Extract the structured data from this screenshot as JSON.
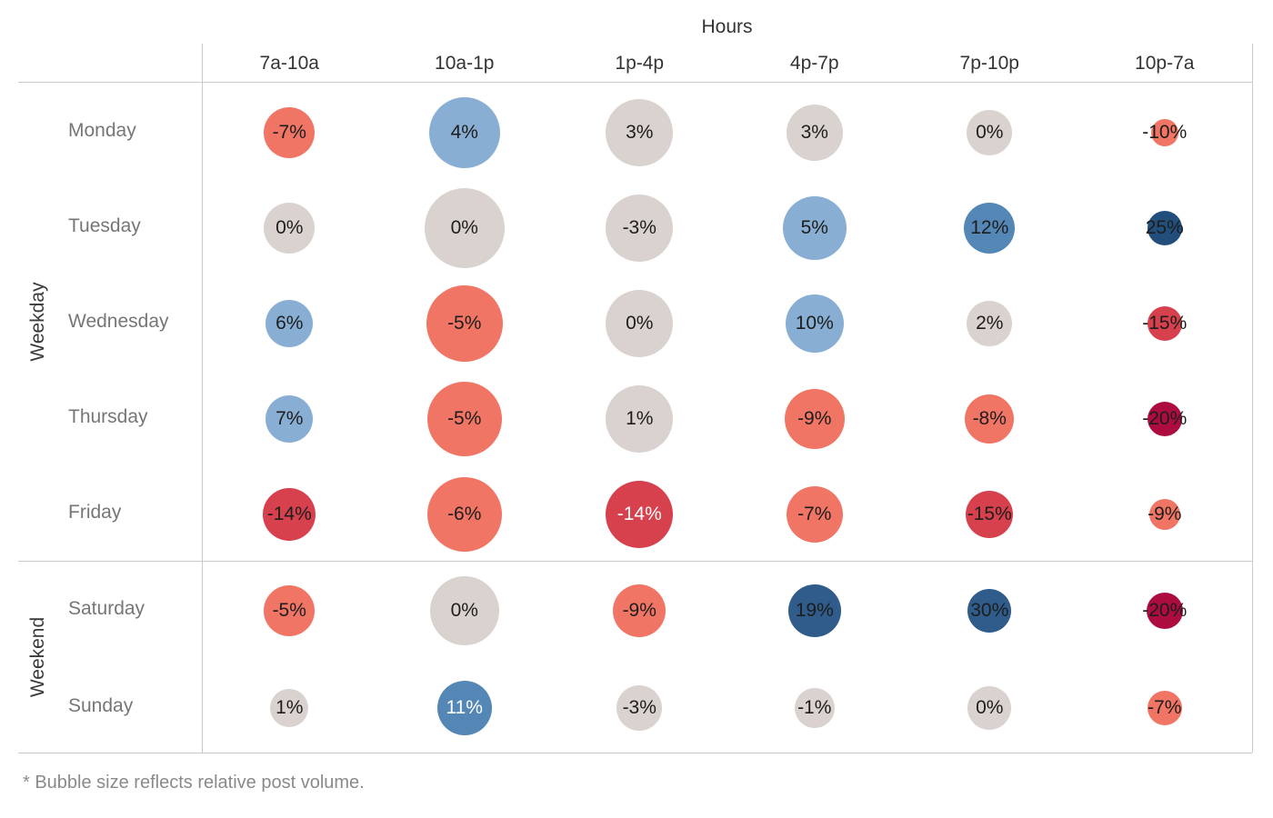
{
  "chart_data": {
    "type": "bubble",
    "title": "Hours",
    "footnote": "* Bubble size reflects relative post volume.",
    "columns": [
      "7a-10a",
      "10a-1p",
      "1p-4p",
      "4p-7p",
      "7p-10p",
      "10p-7a"
    ],
    "row_groups": [
      {
        "label": "Weekday",
        "rows": [
          "Monday",
          "Tuesday",
          "Wednesday",
          "Thursday",
          "Friday"
        ]
      },
      {
        "label": "Weekend",
        "rows": [
          "Saturday",
          "Sunday"
        ]
      }
    ],
    "palette": {
      "salmon": "#F17564",
      "red": "#D7404D",
      "crimson": "#AC0D3E",
      "gray": "#D9D2CE",
      "lightblue": "#88AFD3",
      "medblue": "#5486B6",
      "darkblue": "#2F5C8A",
      "navy": "#224E7C",
      "text_dark": "#1d1d1d",
      "text_light": "#ffffff",
      "gridline": "#c9c9c9"
    },
    "cells": [
      [
        {
          "label": "-7%",
          "value": -7,
          "size": 56,
          "color": "salmon",
          "text": "dark"
        },
        {
          "label": "4%",
          "value": 4,
          "size": 78,
          "color": "lightblue",
          "text": "dark"
        },
        {
          "label": "3%",
          "value": 3,
          "size": 74,
          "color": "gray",
          "text": "dark"
        },
        {
          "label": "3%",
          "value": 3,
          "size": 62,
          "color": "gray",
          "text": "dark"
        },
        {
          "label": "0%",
          "value": 0,
          "size": 50,
          "color": "gray",
          "text": "dark"
        },
        {
          "label": "-10%",
          "value": -10,
          "size": 30,
          "color": "salmon",
          "text": "dark"
        }
      ],
      [
        {
          "label": "0%",
          "value": 0,
          "size": 56,
          "color": "gray",
          "text": "dark"
        },
        {
          "label": "0%",
          "value": 0,
          "size": 88,
          "color": "gray",
          "text": "dark"
        },
        {
          "label": "-3%",
          "value": -3,
          "size": 74,
          "color": "gray",
          "text": "dark"
        },
        {
          "label": "5%",
          "value": 5,
          "size": 70,
          "color": "lightblue",
          "text": "dark"
        },
        {
          "label": "12%",
          "value": 12,
          "size": 56,
          "color": "medblue",
          "text": "dark"
        },
        {
          "label": "25%",
          "value": 25,
          "size": 38,
          "color": "navy",
          "text": "dark"
        }
      ],
      [
        {
          "label": "6%",
          "value": 6,
          "size": 52,
          "color": "lightblue",
          "text": "dark"
        },
        {
          "label": "-5%",
          "value": -5,
          "size": 84,
          "color": "salmon",
          "text": "dark"
        },
        {
          "label": "0%",
          "value": 0,
          "size": 74,
          "color": "gray",
          "text": "dark"
        },
        {
          "label": "10%",
          "value": 10,
          "size": 64,
          "color": "lightblue",
          "text": "dark"
        },
        {
          "label": "2%",
          "value": 2,
          "size": 50,
          "color": "gray",
          "text": "dark"
        },
        {
          "label": "-15%",
          "value": -15,
          "size": 38,
          "color": "red",
          "text": "dark"
        }
      ],
      [
        {
          "label": "7%",
          "value": 7,
          "size": 52,
          "color": "lightblue",
          "text": "dark"
        },
        {
          "label": "-5%",
          "value": -5,
          "size": 82,
          "color": "salmon",
          "text": "dark"
        },
        {
          "label": "1%",
          "value": 1,
          "size": 74,
          "color": "gray",
          "text": "dark"
        },
        {
          "label": "-9%",
          "value": -9,
          "size": 66,
          "color": "salmon",
          "text": "dark"
        },
        {
          "label": "-8%",
          "value": -8,
          "size": 54,
          "color": "salmon",
          "text": "dark"
        },
        {
          "label": "-20%",
          "value": -20,
          "size": 38,
          "color": "crimson",
          "text": "dark"
        }
      ],
      [
        {
          "label": "-14%",
          "value": -14,
          "size": 58,
          "color": "red",
          "text": "dark"
        },
        {
          "label": "-6%",
          "value": -6,
          "size": 82,
          "color": "salmon",
          "text": "dark"
        },
        {
          "label": "-14%",
          "value": -14,
          "size": 74,
          "color": "red",
          "text": "light"
        },
        {
          "label": "-7%",
          "value": -7,
          "size": 62,
          "color": "salmon",
          "text": "dark"
        },
        {
          "label": "-15%",
          "value": -15,
          "size": 52,
          "color": "red",
          "text": "dark"
        },
        {
          "label": "-9%",
          "value": -9,
          "size": 34,
          "color": "salmon",
          "text": "dark"
        }
      ],
      [
        {
          "label": "-5%",
          "value": -5,
          "size": 56,
          "color": "salmon",
          "text": "dark"
        },
        {
          "label": "0%",
          "value": 0,
          "size": 76,
          "color": "gray",
          "text": "dark"
        },
        {
          "label": "-9%",
          "value": -9,
          "size": 58,
          "color": "salmon",
          "text": "dark"
        },
        {
          "label": "19%",
          "value": 19,
          "size": 58,
          "color": "darkblue",
          "text": "dark"
        },
        {
          "label": "30%",
          "value": 30,
          "size": 48,
          "color": "darkblue",
          "text": "dark"
        },
        {
          "label": "-20%",
          "value": -20,
          "size": 40,
          "color": "crimson",
          "text": "dark"
        }
      ],
      [
        {
          "label": "1%",
          "value": 1,
          "size": 42,
          "color": "gray",
          "text": "dark"
        },
        {
          "label": "11%",
          "value": 11,
          "size": 60,
          "color": "medblue",
          "text": "light"
        },
        {
          "label": "-3%",
          "value": -3,
          "size": 50,
          "color": "gray",
          "text": "dark"
        },
        {
          "label": "-1%",
          "value": -1,
          "size": 44,
          "color": "gray",
          "text": "dark"
        },
        {
          "label": "0%",
          "value": 0,
          "size": 48,
          "color": "gray",
          "text": "dark"
        },
        {
          "label": "-7%",
          "value": -7,
          "size": 38,
          "color": "salmon",
          "text": "dark"
        }
      ]
    ]
  }
}
